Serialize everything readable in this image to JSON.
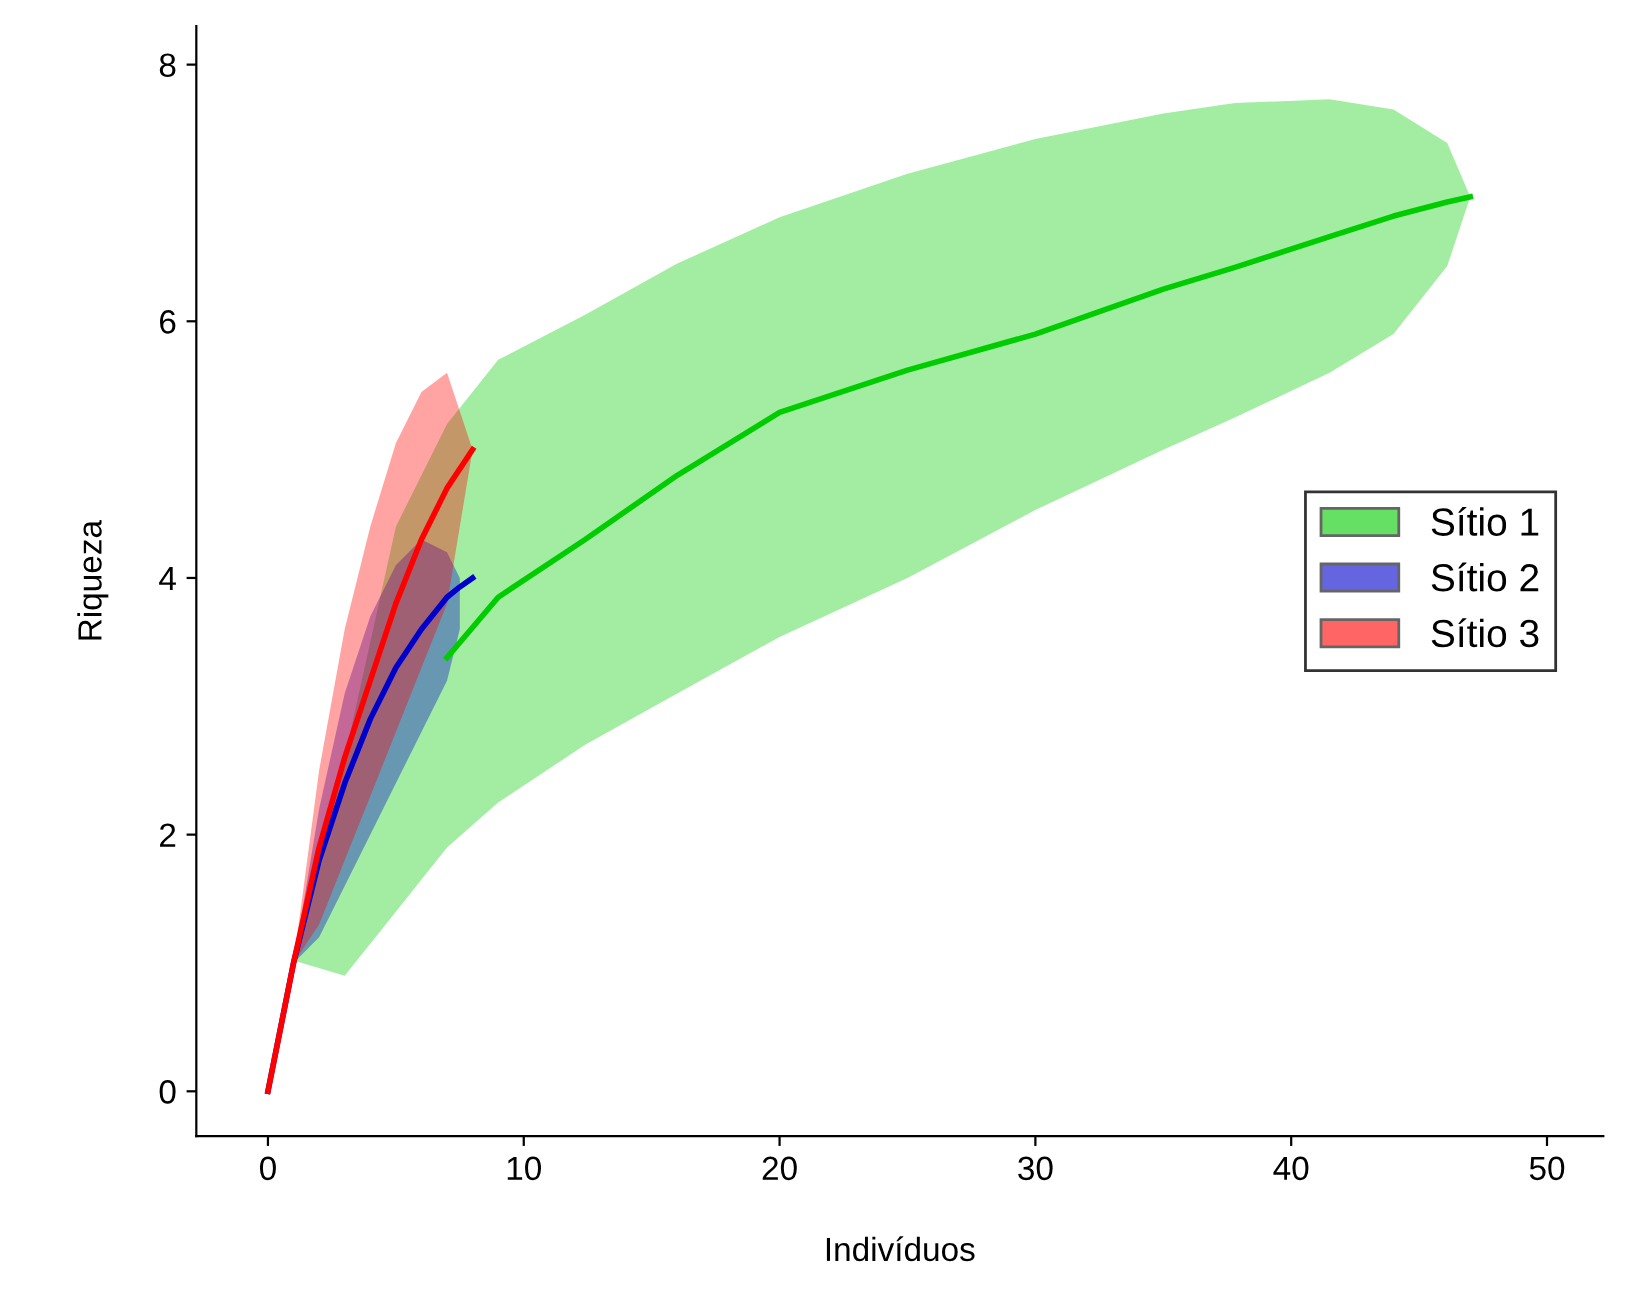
{
  "chart_data": {
    "type": "line",
    "xlabel": "Indivíduos",
    "ylabel": "Riqueza",
    "xlim": [
      -2.8,
      52.2
    ],
    "ylim": [
      -0.35,
      8.3
    ],
    "xticks": [
      0,
      10,
      20,
      30,
      40,
      50
    ],
    "yticks": [
      0,
      2,
      4,
      6,
      8
    ],
    "grid": false,
    "legend": "right",
    "marker": "none",
    "line_style": "solid",
    "series": [
      {
        "name": "Sítio 1",
        "color": "#00cc00",
        "x": [
          1,
          3,
          5,
          7,
          9,
          12.4,
          16,
          20,
          25,
          30,
          35,
          37.8,
          41.5,
          44,
          46.1,
          47
        ],
        "values": [
          null,
          null,
          null,
          3.38,
          3.85,
          4.3,
          4.8,
          5.29,
          5.62,
          5.9,
          6.25,
          6.42,
          6.66,
          6.82,
          6.93,
          6.97
        ],
        "lower": [
          1.02,
          0.9,
          1.4,
          1.9,
          2.25,
          2.7,
          3.1,
          3.54,
          4.0,
          4.53,
          5.0,
          5.25,
          5.6,
          5.9,
          6.43,
          6.97
        ],
        "upper": [
          1.02,
          2.6,
          4.4,
          5.2,
          5.7,
          6.05,
          6.45,
          6.81,
          7.15,
          7.42,
          7.62,
          7.7,
          7.73,
          7.65,
          7.39,
          6.97
        ]
      },
      {
        "name": "Sítio 2",
        "color": "#0000cc",
        "x": [
          0,
          1,
          2,
          3,
          4,
          5,
          6,
          7,
          7.5,
          8
        ],
        "values": [
          0,
          1,
          1.8,
          2.4,
          2.9,
          3.3,
          3.6,
          3.85,
          3.93,
          4.0
        ],
        "lower": [
          null,
          1,
          1.2,
          1.6,
          2.0,
          2.4,
          2.8,
          3.2,
          3.6,
          null
        ],
        "upper": [
          null,
          1,
          2.2,
          3.1,
          3.7,
          4.1,
          4.3,
          4.2,
          4.0,
          null
        ]
      },
      {
        "name": "Sítio 3",
        "color": "#ff0000",
        "x": [
          0,
          1,
          2,
          3,
          4,
          5,
          6,
          7,
          8
        ],
        "values": [
          0,
          1,
          1.9,
          2.6,
          3.2,
          3.8,
          4.3,
          4.7,
          5.0
        ],
        "lower": [
          null,
          1,
          1.3,
          1.8,
          2.3,
          2.8,
          3.3,
          3.8,
          5.0
        ],
        "upper": [
          null,
          1,
          2.5,
          3.6,
          4.4,
          5.05,
          5.45,
          5.6,
          5.0
        ]
      }
    ]
  }
}
